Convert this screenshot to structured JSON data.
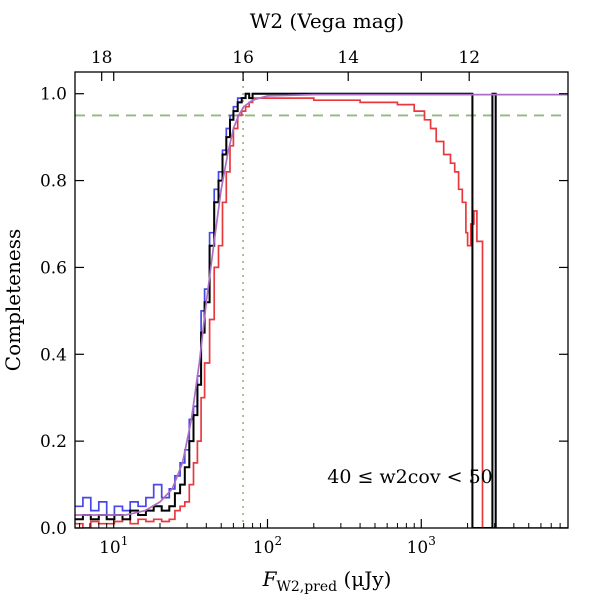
{
  "chart_data": {
    "type": "line",
    "xscale": "log",
    "xlim": [
      5.6,
      9000
    ],
    "ylim": [
      0.0,
      1.05
    ],
    "ylabel": "Completeness",
    "xlabel_main": "F",
    "xlabel_sub": "W2,pred",
    "xlabel_unit": " (μJy)",
    "top_axis_title": "W2 (Vega mag)",
    "annotation": "40 ≤ w2cov < 50",
    "grid": false,
    "x_ticks": [
      {
        "value": 10,
        "base": "10",
        "exp": "1"
      },
      {
        "value": 100,
        "base": "10",
        "exp": "2"
      },
      {
        "value": 1000,
        "base": "10",
        "exp": "3"
      }
    ],
    "y_ticks": [
      {
        "value": 0.0,
        "label": "0.0"
      },
      {
        "value": 0.2,
        "label": "0.2"
      },
      {
        "value": 0.4,
        "label": "0.4"
      },
      {
        "value": 0.6,
        "label": "0.6"
      },
      {
        "value": 0.8,
        "label": "0.8"
      },
      {
        "value": 1.0,
        "label": "1.0"
      }
    ],
    "top_ticks": [
      {
        "flux": 8.35,
        "label": "18"
      },
      {
        "flux": 69.4,
        "label": "16"
      },
      {
        "flux": 335,
        "label": "14"
      },
      {
        "flux": 2050,
        "label": "12"
      }
    ],
    "reference_lines": {
      "horizontal_y": 0.95,
      "horizontal_color": "#90b880",
      "vertical_x": 69.4,
      "vertical_color": "#b4b488"
    },
    "series": [
      {
        "color": "#e8393f",
        "step_edges": [
          5.6,
          6.3,
          7.1,
          8.0,
          9.0,
          10.1,
          11.4,
          12.8,
          14.4,
          16.2,
          18.2,
          20.5,
          23.0,
          25.0,
          27.0,
          29.0,
          31.0,
          33.0,
          35.0,
          37.0,
          39.0,
          42.0,
          45.0,
          48.0,
          51.0,
          54.0,
          57.0,
          60.0,
          64.0,
          68.0,
          72.0,
          76.0,
          80.0,
          100.0,
          200.0,
          400.0,
          700.0,
          900.0,
          1050.0,
          1150.0,
          1250.0,
          1400.0,
          1550.0,
          1650.0,
          1750.0,
          1850.0,
          1950.0,
          2000.0,
          2100.0,
          2200.0,
          2300.0,
          2500.0,
          3000.0,
          9000.0
        ],
        "step_values": [
          0.01,
          0.0,
          0.015,
          0.01,
          0.01,
          0.015,
          0.02,
          0.01,
          0.02,
          0.015,
          0.02,
          0.015,
          0.02,
          0.04,
          0.05,
          0.06,
          0.1,
          0.15,
          0.2,
          0.3,
          0.38,
          0.48,
          0.6,
          0.65,
          0.75,
          0.82,
          0.88,
          0.92,
          0.95,
          0.96,
          0.97,
          0.98,
          0.99,
          0.99,
          0.985,
          0.98,
          0.975,
          0.96,
          0.94,
          0.92,
          0.89,
          0.86,
          0.84,
          0.82,
          0.78,
          0.75,
          0.68,
          0.65,
          0.7,
          0.73,
          0.66,
          0.0,
          0.0
        ]
      },
      {
        "color": "#4848e6",
        "step_edges": [
          5.6,
          6.3,
          7.1,
          8.0,
          9.0,
          10.1,
          11.4,
          12.8,
          14.4,
          16.2,
          18.2,
          20.5,
          23.0,
          25.0,
          27.0,
          29.0,
          31.0,
          33.0,
          35.0,
          37.0,
          39.0,
          42.0,
          45.0,
          48.0,
          51.0,
          54.0,
          57.0,
          60.0,
          64.0,
          68.0,
          72.0,
          76.0,
          80.0,
          2000.0,
          2150.0,
          2900.0,
          3050.0
        ],
        "step_values": [
          0.05,
          0.07,
          0.04,
          0.06,
          0.03,
          0.05,
          0.04,
          0.06,
          0.05,
          0.07,
          0.1,
          0.07,
          0.09,
          0.12,
          0.15,
          0.18,
          0.25,
          0.28,
          0.35,
          0.5,
          0.55,
          0.68,
          0.78,
          0.82,
          0.87,
          0.92,
          0.95,
          0.97,
          0.99,
          0.99,
          1.0,
          0.99,
          1.0,
          1.0,
          0.0,
          1.0,
          0.0
        ]
      },
      {
        "color": "#000000",
        "step_edges": [
          5.6,
          6.3,
          7.1,
          8.0,
          9.0,
          10.1,
          11.4,
          12.8,
          14.4,
          16.2,
          18.2,
          20.5,
          23.0,
          25.0,
          27.0,
          29.0,
          31.0,
          33.0,
          35.0,
          37.0,
          39.0,
          42.0,
          45.0,
          48.0,
          51.0,
          54.0,
          57.0,
          60.0,
          64.0,
          68.0,
          72.0,
          76.0,
          80.0,
          2000.0,
          2150.0,
          2900.0,
          3050.0
        ],
        "step_values": [
          0.02,
          0.03,
          0.02,
          0.03,
          0.02,
          0.03,
          0.02,
          0.04,
          0.03,
          0.04,
          0.05,
          0.04,
          0.05,
          0.08,
          0.1,
          0.14,
          0.2,
          0.26,
          0.33,
          0.45,
          0.52,
          0.65,
          0.75,
          0.8,
          0.86,
          0.9,
          0.94,
          0.96,
          0.98,
          0.99,
          1.0,
          0.99,
          1.0,
          1.0,
          0.0,
          1.0,
          0.0
        ]
      },
      {
        "color": "#aa6fc4",
        "curve": "model",
        "x": [
          5.6,
          8,
          12,
          16,
          20,
          24,
          28,
          32,
          36,
          40,
          45,
          50,
          55,
          60,
          65,
          70,
          80,
          100,
          200,
          500,
          1000,
          3000,
          9000
        ],
        "y": [
          0.03,
          0.03,
          0.03,
          0.04,
          0.06,
          0.09,
          0.15,
          0.25,
          0.38,
          0.52,
          0.66,
          0.78,
          0.86,
          0.92,
          0.95,
          0.97,
          0.985,
          0.995,
          0.998,
          0.998,
          0.998,
          0.998,
          0.998
        ]
      }
    ]
  }
}
